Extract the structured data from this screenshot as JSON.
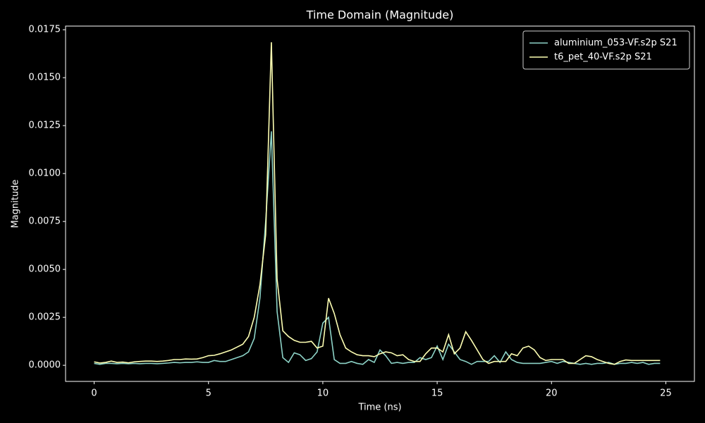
{
  "chart_data": {
    "type": "line",
    "title": "Time Domain (Magnitude)",
    "xlabel": "Time (ns)",
    "ylabel": "Magnitude",
    "x": [
      0,
      0.25,
      0.5,
      0.75,
      1,
      1.25,
      1.5,
      1.75,
      2,
      2.25,
      2.5,
      2.75,
      3,
      3.25,
      3.5,
      3.75,
      4,
      4.25,
      4.5,
      4.75,
      5,
      5.25,
      5.5,
      5.75,
      6,
      6.25,
      6.5,
      6.75,
      7,
      7.25,
      7.5,
      7.75,
      8,
      8.25,
      8.5,
      8.75,
      9,
      9.25,
      9.5,
      9.75,
      10,
      10.25,
      10.5,
      10.75,
      11,
      11.25,
      11.5,
      11.75,
      12,
      12.25,
      12.5,
      12.75,
      13,
      13.25,
      13.5,
      13.75,
      14,
      14.25,
      14.5,
      14.75,
      15,
      15.25,
      15.5,
      15.75,
      16,
      16.25,
      16.5,
      16.75,
      17,
      17.25,
      17.5,
      17.75,
      18,
      18.25,
      18.5,
      18.75,
      19,
      19.25,
      19.5,
      19.75,
      20,
      20.25,
      20.5,
      20.75,
      21,
      21.25,
      21.5,
      21.75,
      22,
      22.25,
      22.5,
      22.75,
      23,
      23.25,
      23.5,
      23.75,
      24,
      24.25,
      24.5,
      24.75
    ],
    "series": [
      {
        "name": "aluminium_053-VF.s2p S21",
        "color": "#8dd3c7",
        "values": [
          0.0001,
          5e-05,
          0.0001,
          0.0001,
          8e-05,
          0.0001,
          8e-05,
          0.0001,
          8e-05,
          0.0001,
          0.0001,
          8e-05,
          0.0001,
          0.00012,
          0.00015,
          0.00013,
          0.00015,
          0.00015,
          0.00018,
          0.00015,
          0.00015,
          0.00025,
          0.0002,
          0.0002,
          0.0003,
          0.0004,
          0.0005,
          0.0007,
          0.0014,
          0.0035,
          0.0075,
          0.0122,
          0.0028,
          0.0004,
          0.00015,
          0.00065,
          0.00055,
          0.00025,
          0.00035,
          0.0007,
          0.0022,
          0.0025,
          0.0003,
          0.0001,
          0.0001,
          0.0002,
          0.0001,
          5e-05,
          0.0003,
          0.00015,
          0.0008,
          0.0005,
          0.0001,
          0.00015,
          0.0001,
          0.00015,
          0.00015,
          0.0004,
          0.0003,
          0.0004,
          0.001,
          0.0003,
          0.0011,
          0.0007,
          0.0003,
          0.0002,
          5e-05,
          0.0002,
          0.0002,
          0.0002,
          0.0005,
          0.00015,
          0.0007,
          0.0003,
          0.00015,
          0.0001,
          0.0001,
          0.0001,
          0.0001,
          0.00015,
          0.0002,
          0.0001,
          0.0002,
          0.00015,
          0.0001,
          5e-05,
          0.0001,
          5e-05,
          0.0001,
          0.0001,
          0.00015,
          5e-05,
          0.0001,
          0.0001,
          0.00015,
          0.0001,
          0.00015,
          5e-05,
          0.0001,
          0.0001
        ]
      },
      {
        "name": "t6_pet_40-VF.s2p S21",
        "color": "#feffb3",
        "values": [
          0.00018,
          0.00012,
          0.00015,
          0.00022,
          0.00015,
          0.00017,
          0.00013,
          0.00018,
          0.0002,
          0.00022,
          0.00022,
          0.0002,
          0.00022,
          0.00025,
          0.0003,
          0.0003,
          0.00033,
          0.00032,
          0.00033,
          0.0004,
          0.0005,
          0.00052,
          0.0006,
          0.0007,
          0.0008,
          0.00095,
          0.0011,
          0.0015,
          0.0025,
          0.0042,
          0.0068,
          0.01685,
          0.0045,
          0.0018,
          0.0015,
          0.0013,
          0.0012,
          0.0012,
          0.00125,
          0.0009,
          0.001,
          0.0035,
          0.0027,
          0.0016,
          0.0009,
          0.0007,
          0.00055,
          0.0005,
          0.0005,
          0.00045,
          0.0006,
          0.0007,
          0.00065,
          0.0005,
          0.00055,
          0.0003,
          0.0002,
          0.0002,
          0.0006,
          0.0009,
          0.0009,
          0.0007,
          0.0016,
          0.0006,
          0.0009,
          0.00175,
          0.0013,
          0.0008,
          0.0003,
          0.0001,
          0.0002,
          0.0002,
          0.0002,
          0.0006,
          0.0005,
          0.0009,
          0.001,
          0.0008,
          0.0004,
          0.00025,
          0.0003,
          0.0003,
          0.0003,
          0.0001,
          0.0001,
          0.0003,
          0.0005,
          0.00045,
          0.0003,
          0.0002,
          0.0001,
          5e-05,
          0.0002,
          0.00028,
          0.00025,
          0.00025,
          0.00025,
          0.00025,
          0.00025,
          0.00025
        ]
      }
    ],
    "xlim": [
      -1.25,
      26.25
    ],
    "ylim": [
      -0.00084,
      0.01769
    ],
    "xticks": [
      0,
      5,
      10,
      15,
      20,
      25
    ],
    "yticks": [
      {
        "value": 0,
        "label": "0.0000"
      },
      {
        "value": 0.0025,
        "label": "0.0025"
      },
      {
        "value": 0.005,
        "label": "0.0050"
      },
      {
        "value": 0.0075,
        "label": "0.0075"
      },
      {
        "value": 0.01,
        "label": "0.0100"
      },
      {
        "value": 0.0125,
        "label": "0.0125"
      },
      {
        "value": 0.015,
        "label": "0.0150"
      },
      {
        "value": 0.0175,
        "label": "0.0175"
      }
    ],
    "legend": "upper right"
  }
}
